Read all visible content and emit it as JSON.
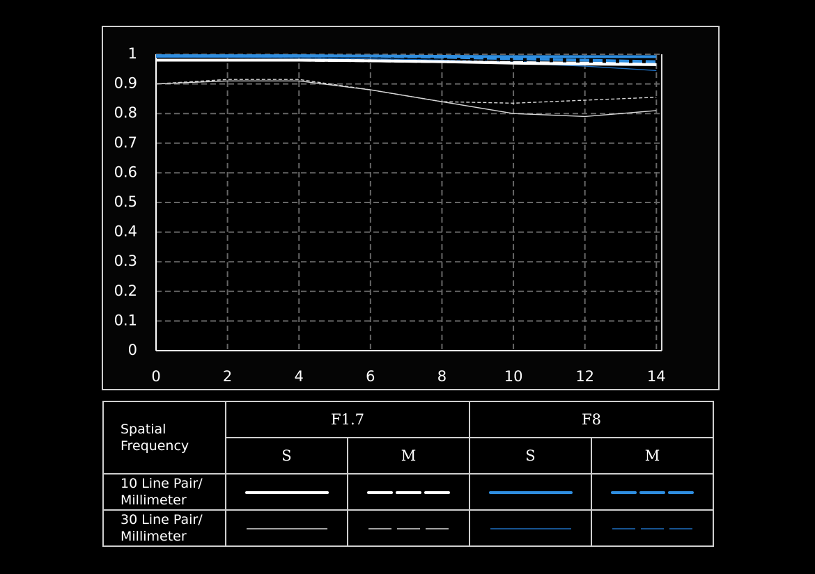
{
  "chart_data": {
    "type": "line",
    "x": [
      0,
      2,
      4,
      6,
      8,
      10,
      12,
      14
    ],
    "xlim": [
      0,
      14.15
    ],
    "xticks": [
      0,
      2,
      4,
      6,
      8,
      10,
      12,
      14
    ],
    "ylim": [
      0,
      1
    ],
    "yticks": [
      0,
      0.1,
      0.2,
      0.3,
      0.4,
      0.5,
      0.6,
      0.7,
      0.8,
      0.9,
      1
    ],
    "grid": true,
    "series": [
      {
        "color": "#ffffff",
        "style": "solid",
        "weight": "thick",
        "values": [
          0.98,
          0.98,
          0.98,
          0.978,
          0.975,
          0.97,
          0.967,
          0.965
        ]
      },
      {
        "color": "#ffffff",
        "style": "dashed",
        "weight": "thick",
        "values": [
          0.98,
          0.98,
          0.98,
          0.978,
          0.975,
          0.972,
          0.97,
          0.97
        ]
      },
      {
        "color": "#2f8ee0",
        "style": "solid",
        "weight": "thick",
        "values": [
          0.995,
          0.995,
          0.995,
          0.994,
          0.993,
          0.992,
          0.992,
          0.992
        ]
      },
      {
        "color": "#2f8ee0",
        "style": "dashed",
        "weight": "thick",
        "values": [
          0.995,
          0.995,
          0.995,
          0.994,
          0.99,
          0.985,
          0.98,
          0.975
        ]
      },
      {
        "color": "#d8d8d8",
        "style": "solid",
        "weight": "thin",
        "values": [
          0.9,
          0.91,
          0.91,
          0.88,
          0.84,
          0.8,
          0.79,
          0.81
        ]
      },
      {
        "color": "#d8d8d8",
        "style": "dashed",
        "weight": "thin",
        "values": [
          0.9,
          0.915,
          0.915,
          0.88,
          0.84,
          0.835,
          0.845,
          0.855
        ]
      },
      {
        "color": "#1f6fc0",
        "style": "solid",
        "weight": "thin",
        "values": [
          0.99,
          0.99,
          0.988,
          0.985,
          0.98,
          0.97,
          0.96,
          0.945
        ]
      },
      {
        "color": "#1f6fc0",
        "style": "dashed",
        "weight": "thin",
        "values": [
          0.99,
          0.99,
          0.988,
          0.985,
          0.98,
          0.975,
          0.97,
          0.965
        ]
      }
    ]
  },
  "legend_table": {
    "corner": "Spatial Frequency",
    "apertures": [
      "F1.7",
      "F8"
    ],
    "positions": [
      "S",
      "M",
      "S",
      "M"
    ],
    "rows": [
      "10 Line Pair/ Millimeter",
      "30 Line Pair/ Millimeter"
    ]
  }
}
